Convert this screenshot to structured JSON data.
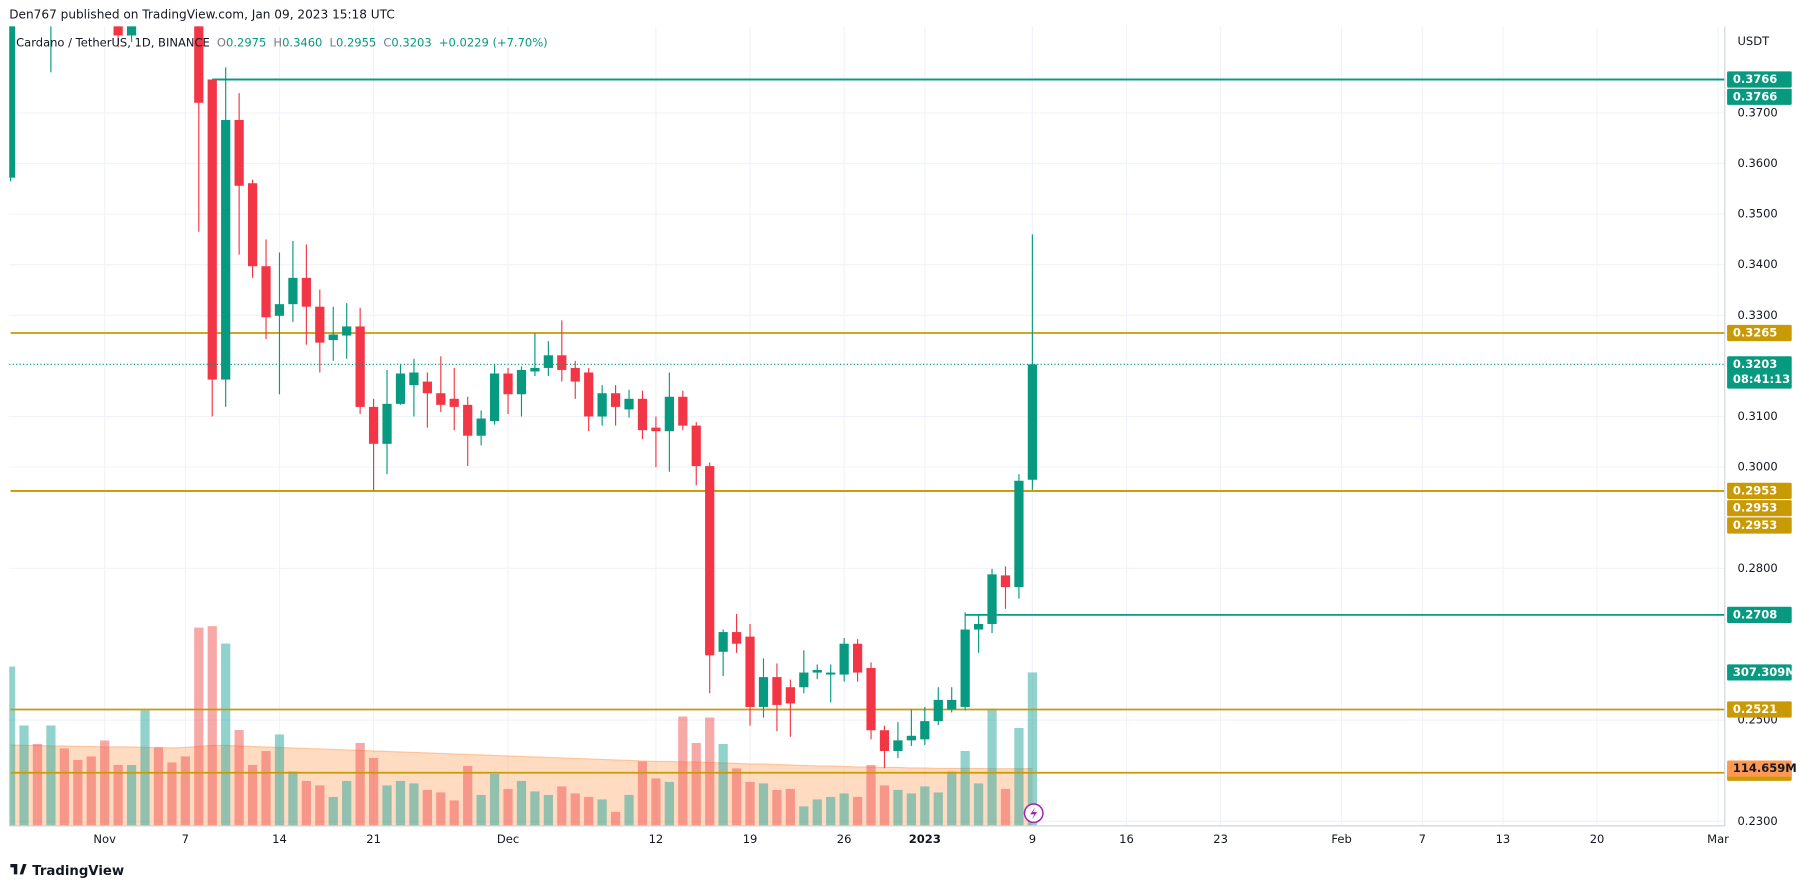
{
  "header": {
    "publisher": "Den767 published on TradingView.com, Jan 09, 2023 15:18 UTC",
    "symbol": "Cardano / TetherUS, 1D, BINANCE",
    "ohlc": [
      {
        "label": "O",
        "value": "0.2975"
      },
      {
        "label": "H",
        "value": "0.3460"
      },
      {
        "label": "L",
        "value": "0.2955"
      },
      {
        "label": "C",
        "value": "0.3203"
      }
    ],
    "change": "+0.0229 (+7.70%)"
  },
  "footer": {
    "brand": "TradingView"
  },
  "chart_data": {
    "type": "candlestick",
    "currency": "USDT",
    "up_color": "#089981",
    "down_color": "#f23645",
    "xlim": [
      -0.1,
      127.5
    ],
    "ylim": [
      0.2291,
      0.3871
    ],
    "xticks": [
      {
        "value": 7,
        "label": "Nov"
      },
      {
        "value": 13,
        "label": "7"
      },
      {
        "value": 20,
        "label": "14"
      },
      {
        "value": 27,
        "label": "21"
      },
      {
        "value": 37,
        "label": "Dec"
      },
      {
        "value": 48,
        "label": "12"
      },
      {
        "value": 55,
        "label": "19"
      },
      {
        "value": 62,
        "label": "26"
      },
      {
        "value": 68,
        "label": "2023"
      },
      {
        "value": 76,
        "label": "9"
      },
      {
        "value": 83,
        "label": "16"
      },
      {
        "value": 90,
        "label": "23"
      },
      {
        "value": 99,
        "label": "Feb"
      },
      {
        "value": 105,
        "label": "7"
      },
      {
        "value": 111,
        "label": "13"
      },
      {
        "value": 118,
        "label": "20"
      },
      {
        "value": 127,
        "label": "Mar"
      }
    ],
    "yticks": [
      {
        "value": 0.37,
        "label": "0.3700"
      },
      {
        "value": 0.36,
        "label": "0.3600"
      },
      {
        "value": 0.35,
        "label": "0.3500"
      },
      {
        "value": 0.34,
        "label": "0.3400"
      },
      {
        "value": 0.33,
        "label": "0.3300"
      },
      {
        "value": 0.31,
        "label": "0.3100"
      },
      {
        "value": 0.3,
        "label": "0.3000"
      },
      {
        "value": 0.28,
        "label": "0.2800"
      },
      {
        "value": 0.25,
        "label": "0.2500"
      },
      {
        "value": 0.23,
        "label": "0.2300"
      }
    ],
    "grid": true,
    "candles": {
      "open": [
        0.3572,
        null,
        null,
        0.392,
        null,
        null,
        null,
        null,
        0.389,
        0.3853,
        null,
        null,
        null,
        null,
        0.395,
        0.3766,
        0.3173,
        0.3686,
        0.3561,
        0.3397,
        0.3299,
        0.3322,
        0.3374,
        0.3317,
        0.3251,
        0.326,
        0.3278,
        0.3119,
        0.3046,
        0.3125,
        0.3162,
        0.3169,
        0.3146,
        0.3135,
        0.3123,
        0.3062,
        0.3091,
        0.3185,
        0.3144,
        0.3189,
        0.3196,
        0.3221,
        0.3196,
        0.3187,
        0.31,
        0.3146,
        0.3114,
        0.3135,
        0.3078,
        0.3071,
        0.3139,
        0.3082,
        0.3002,
        0.2635,
        0.2674,
        0.2665,
        0.2526,
        0.2585,
        0.2565,
        0.2565,
        0.2594,
        0.259,
        0.259,
        0.2651,
        0.2603,
        0.248,
        0.2439,
        0.246,
        0.2462,
        0.2498,
        0.2521,
        0.2526,
        0.2679,
        0.269,
        0.2786,
        0.2763,
        0.2975
      ],
      "high": [
        0.395,
        null,
        null,
        0.398,
        null,
        null,
        null,
        null,
        0.392,
        0.392,
        null,
        null,
        null,
        null,
        0.398,
        0.3766,
        0.379,
        0.3739,
        0.3568,
        0.345,
        0.3424,
        0.3447,
        0.344,
        0.3351,
        0.3317,
        0.3324,
        0.3315,
        0.3135,
        0.3192,
        0.3203,
        0.3214,
        0.3187,
        0.3219,
        0.3196,
        0.3139,
        0.3112,
        0.3203,
        0.3196,
        0.3199,
        0.3265,
        0.3249,
        0.329,
        0.321,
        0.3196,
        0.3162,
        0.3162,
        0.3153,
        0.3151,
        0.31,
        0.3187,
        0.3151,
        0.3089,
        0.3009,
        0.2679,
        0.271,
        0.269,
        0.2622,
        0.2612,
        0.258,
        0.2638,
        0.261,
        0.261,
        0.2662,
        0.266,
        0.2614,
        0.2489,
        0.2496,
        0.2521,
        0.2526,
        0.2565,
        0.2565,
        0.2713,
        0.2708,
        0.2799,
        0.2804,
        0.2986,
        0.346
      ],
      "low": [
        0.3565,
        null,
        null,
        0.378,
        null,
        null,
        null,
        null,
        0.383,
        0.384,
        null,
        null,
        null,
        null,
        0.3465,
        0.31,
        0.3119,
        0.342,
        0.3374,
        0.3253,
        0.3144,
        0.3287,
        0.3242,
        0.3187,
        0.321,
        0.3214,
        0.3105,
        0.2954,
        0.2986,
        0.3123,
        0.31,
        0.3078,
        0.3109,
        0.3073,
        0.3002,
        0.3043,
        0.3084,
        0.3105,
        0.31,
        0.318,
        0.318,
        0.3169,
        0.3135,
        0.3071,
        0.3082,
        0.3082,
        0.3098,
        0.3055,
        0.3,
        0.2991,
        0.3073,
        0.2964,
        0.2553,
        0.2587,
        0.2633,
        0.2489,
        0.2505,
        0.2478,
        0.2467,
        0.2553,
        0.2581,
        0.2535,
        0.2576,
        0.2576,
        0.2462,
        0.2405,
        0.2425,
        0.2449,
        0.2451,
        0.249,
        0.2515,
        0.2519,
        0.2633,
        0.2672,
        0.272,
        0.274,
        0.2955
      ],
      "close": [
        0.392,
        null,
        null,
        0.395,
        null,
        null,
        null,
        null,
        0.3853,
        0.389,
        null,
        null,
        null,
        null,
        0.372,
        0.3173,
        0.3686,
        0.3556,
        0.3397,
        0.3296,
        0.3322,
        0.3374,
        0.3317,
        0.3246,
        0.3262,
        0.3278,
        0.3119,
        0.3046,
        0.3125,
        0.3185,
        0.3187,
        0.3146,
        0.3123,
        0.3119,
        0.3062,
        0.3096,
        0.3185,
        0.3144,
        0.3192,
        0.3196,
        0.3221,
        0.3192,
        0.3169,
        0.31,
        0.3146,
        0.3119,
        0.3135,
        0.3073,
        0.3071,
        0.3139,
        0.3082,
        0.3002,
        0.2628,
        0.2674,
        0.2651,
        0.2526,
        0.2585,
        0.253,
        0.2533,
        0.2594,
        0.2599,
        0.2594,
        0.2651,
        0.2594,
        0.248,
        0.2439,
        0.246,
        0.2469,
        0.2498,
        0.254,
        0.254,
        0.2679,
        0.269,
        0.2788,
        0.2763,
        0.2973,
        0.3203
      ]
    },
    "countdown": "08:41:13",
    "price_line_color": "#089981",
    "volume": {
      "ylim": [
        0,
        1601
      ],
      "values": [
        319,
        201,
        164,
        201,
        155,
        132,
        139,
        171,
        122,
        122,
        231,
        157,
        127,
        139,
        397,
        400,
        365,
        192,
        122,
        150,
        183,
        109,
        90,
        81,
        58,
        90,
        166,
        136,
        81,
        90,
        85,
        72,
        67,
        51,
        120,
        62,
        104,
        74,
        90,
        69,
        62,
        79,
        65,
        58,
        53,
        28,
        62,
        129,
        95,
        88,
        219,
        166,
        217,
        164,
        115,
        88,
        85,
        72,
        74,
        39,
        53,
        58,
        65,
        58,
        122,
        81,
        72,
        65,
        79,
        67,
        109,
        150,
        85,
        235,
        74,
        196,
        307.309
      ],
      "value_labels": {
        "76": "307.309M"
      },
      "label_color": "#089981",
      "colors": [
        "#26a69a80",
        "#26a69a80",
        "#ef535080",
        "#26a69a80",
        "#ef535080",
        "#ef535080",
        "#ef535080",
        "#ef535080",
        "#ef535080",
        "#26a69a80",
        "#26a69a80",
        "#ef535080",
        "#ef535080",
        "#ef535080",
        "#ef535080",
        "#ef535080",
        "#26a69a80",
        "#ef535080",
        "#ef535080",
        "#ef535080",
        "#26a69a80",
        "#26a69a80",
        "#ef535080",
        "#ef535080",
        "#26a69a80",
        "#26a69a80",
        "#ef535080",
        "#ef535080",
        "#26a69a80",
        "#26a69a80",
        "#26a69a80",
        "#ef535080",
        "#ef535080",
        "#ef535080",
        "#ef535080",
        "#26a69a80",
        "#26a69a80",
        "#ef535080",
        "#26a69a80",
        "#26a69a80",
        "#26a69a80",
        "#ef535080",
        "#ef535080",
        "#ef535080",
        "#26a69a80",
        "#ef535080",
        "#26a69a80",
        "#ef535080",
        "#ef535080",
        "#26a69a80",
        "#ef535080",
        "#ef535080",
        "#ef535080",
        "#26a69a80",
        "#ef535080",
        "#ef535080",
        "#26a69a80",
        "#ef535080",
        "#ef535080",
        "#26a69a80",
        "#26a69a80",
        "#26a69a80",
        "#26a69a80",
        "#ef535080",
        "#ef535080",
        "#ef535080",
        "#26a69a80",
        "#26a69a80",
        "#26a69a80",
        "#26a69a80",
        "#26a69a80",
        "#26a69a80",
        "#26a69a80",
        "#26a69a80",
        "#ef535080",
        "#26a69a80",
        "#26a69a80"
      ],
      "ma": {
        "color": "#ff9850",
        "values": [
          162,
          161,
          161,
          160,
          160,
          159,
          159,
          158,
          158,
          158,
          157,
          157,
          156,
          157,
          159,
          161,
          161,
          160,
          159,
          158,
          157,
          156,
          155,
          154,
          153,
          152,
          151,
          150,
          149,
          148,
          147,
          146,
          145,
          144,
          143,
          142,
          141,
          140,
          139,
          138,
          137,
          136,
          135,
          134,
          133,
          132,
          131,
          130,
          129,
          129,
          128,
          128,
          127,
          126,
          125,
          124,
          124,
          123,
          122,
          121,
          120,
          120,
          119,
          118,
          118,
          117,
          117,
          116,
          116,
          115,
          115,
          115,
          115,
          114.5,
          114.5,
          114.6,
          114.659
        ],
        "value_labels": {
          "76": "114.659M"
        }
      }
    },
    "levels": [
      {
        "value": 0.3766,
        "color": "#089981",
        "from": 15
      },
      {
        "value": 0.3766,
        "color": "#089981",
        "from": 15
      },
      {
        "value": 0.3265,
        "color": "#c99a06",
        "from": 0
      },
      {
        "value": 0.2953,
        "color": "#c99a06",
        "from": 0
      },
      {
        "value": 0.2953,
        "color": "#c99a06",
        "from": 0
      },
      {
        "value": 0.2953,
        "color": "#c99a06",
        "from": 0
      },
      {
        "value": 0.2708,
        "color": "#089981",
        "from": 71
      },
      {
        "value": 0.2521,
        "color": "#c99a06",
        "from": 0
      },
      {
        "value": 0.2396,
        "color": "#c99a06",
        "from": 0
      }
    ]
  }
}
